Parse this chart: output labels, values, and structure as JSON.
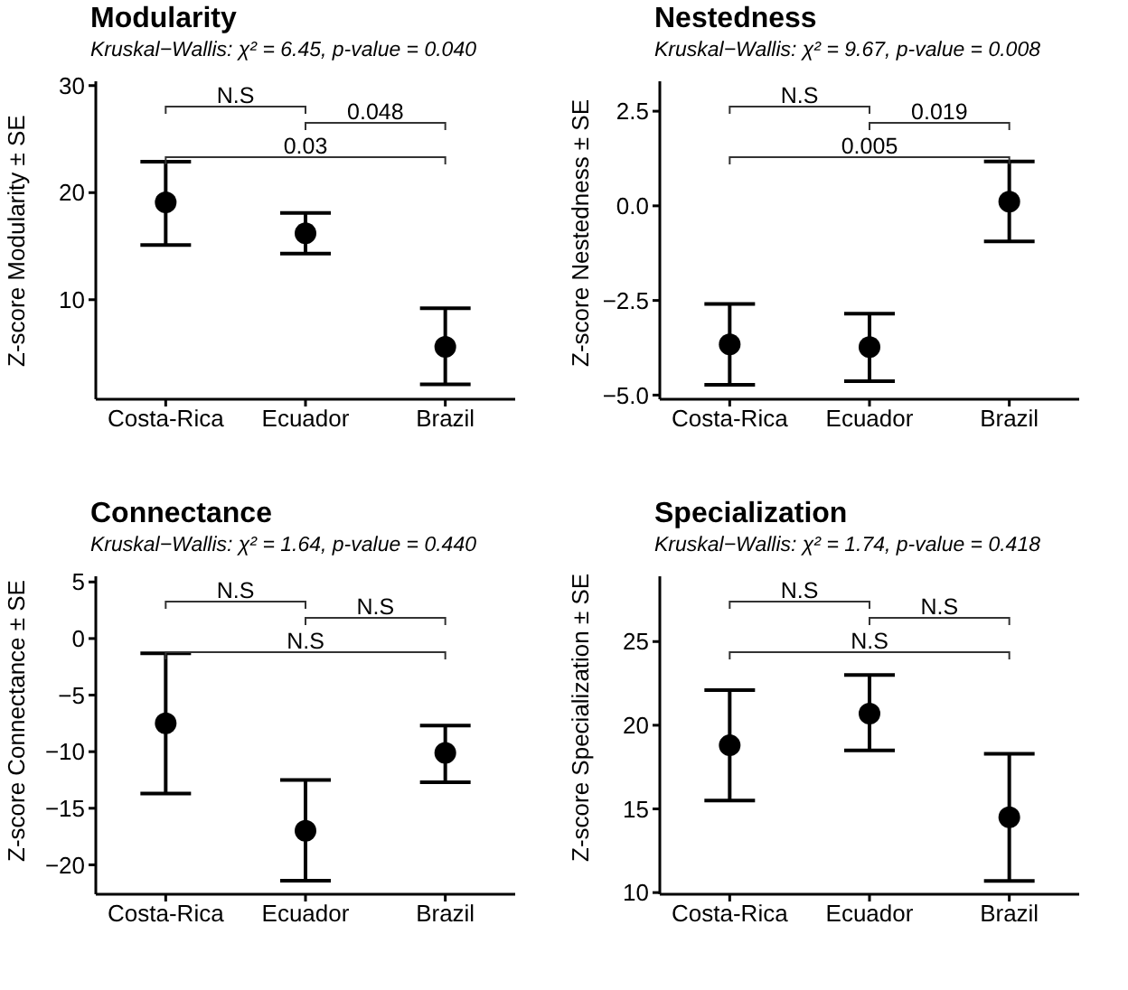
{
  "chart_data": [
    {
      "type": "scatter",
      "title": "Modularity",
      "subtitle": "Kruskal−Wallis: χ² = 6.45, p-value = 0.040",
      "ylabel": "Z-score Modularity ± SE",
      "categories": [
        "Costa-Rica",
        "Ecuador",
        "Brazil"
      ],
      "marker": "circle",
      "color": "#000000",
      "values": [
        19.1,
        16.2,
        5.6
      ],
      "errors": [
        [
          15.1,
          22.9
        ],
        [
          14.3,
          18.1
        ],
        [
          2.1,
          9.2
        ]
      ],
      "ylim": [
        0.7,
        30.4
      ],
      "yticks": [
        10,
        20,
        30
      ],
      "annotations": [
        "N.S",
        "0.048",
        "0.03"
      ]
    },
    {
      "type": "scatter",
      "title": "Nestedness",
      "subtitle": "Kruskal−Wallis: χ² = 9.67, p-value = 0.008",
      "ylabel": "Z-score Nestedness ± SE",
      "categories": [
        "Costa-Rica",
        "Ecuador",
        "Brazil"
      ],
      "marker": "circle",
      "color": "#000000",
      "values": [
        -3.66,
        -3.73,
        0.11
      ],
      "errors": [
        [
          -4.73,
          -2.59
        ],
        [
          -4.63,
          -2.85
        ],
        [
          -0.94,
          1.17
        ]
      ],
      "ylim": [
        -5.11,
        3.29
      ],
      "yticks": [
        {
          "value": -5,
          "label": "−5.0"
        },
        {
          "value": -2.5,
          "label": "−2.5"
        },
        {
          "value": 0,
          "label": "0.0"
        },
        {
          "value": 2.5,
          "label": "2.5"
        }
      ],
      "annotations": [
        "N.S",
        "0.019",
        "0.005"
      ]
    },
    {
      "type": "scatter",
      "title": "Connectance",
      "subtitle": "Kruskal−Wallis: χ² = 1.64, p-value = 0.440",
      "ylabel": "Z-score Connectance ± SE",
      "categories": [
        "Costa-Rica",
        "Ecuador",
        "Brazil"
      ],
      "marker": "circle",
      "color": "#000000",
      "values": [
        -7.5,
        -17.0,
        -10.1
      ],
      "errors": [
        [
          -13.7,
          -1.3
        ],
        [
          -21.4,
          -12.5
        ],
        [
          -12.7,
          -7.7
        ]
      ],
      "ylim": [
        -22.6,
        5.5
      ],
      "yticks": [
        {
          "value": -20,
          "label": "−20"
        },
        {
          "value": -15,
          "label": "−15"
        },
        {
          "value": -10,
          "label": "−10"
        },
        {
          "value": -5,
          "label": "−5"
        },
        0,
        5
      ],
      "annotations": [
        "N.S",
        "N.S",
        "N.S"
      ]
    },
    {
      "type": "scatter",
      "title": "Specialization",
      "subtitle": "Kruskal−Wallis: χ² = 1.74, p-value = 0.418",
      "ylabel": "Z-score Specialization ± SE",
      "categories": [
        "Costa-Rica",
        "Ecuador",
        "Brazil"
      ],
      "marker": "circle",
      "color": "#000000",
      "values": [
        18.8,
        20.7,
        14.5
      ],
      "errors": [
        [
          15.5,
          22.1
        ],
        [
          18.5,
          23.0
        ],
        [
          10.7,
          18.3
        ]
      ],
      "ylim": [
        9.9,
        28.9
      ],
      "yticks": [
        10,
        15,
        20,
        25
      ],
      "annotations": [
        "N.S",
        "N.S",
        "N.S"
      ]
    }
  ]
}
